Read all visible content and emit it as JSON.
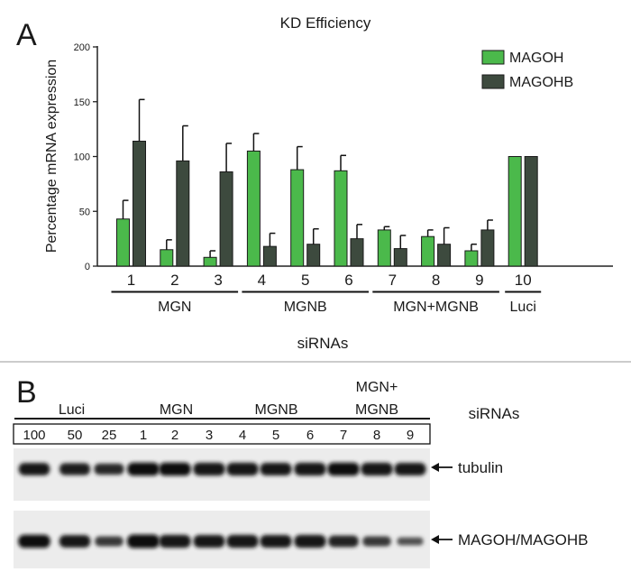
{
  "panel_a": {
    "letter": "A",
    "title": "KD Efficiency",
    "ylabel": "Percentage mRNA expression",
    "xlabel": "siRNAs",
    "legend_position": "top-right",
    "groups": [
      {
        "label": "MGN",
        "from": 1,
        "to": 3
      },
      {
        "label": "MGNB",
        "from": 4,
        "to": 6
      },
      {
        "label": "MGN+MGNB",
        "from": 7,
        "to": 9
      },
      {
        "label": "Luci",
        "from": 10,
        "to": 10
      }
    ]
  },
  "chart_data": {
    "type": "bar",
    "title": "KD Efficiency",
    "xlabel": "siRNAs",
    "ylabel": "Percentage mRNA expression",
    "categories": [
      "1",
      "2",
      "3",
      "4",
      "5",
      "6",
      "7",
      "8",
      "9",
      "10"
    ],
    "ylim": [
      0,
      200
    ],
    "yticks": [
      0,
      50,
      100,
      150,
      200
    ],
    "grid": false,
    "legend": "top-right",
    "series": [
      {
        "name": "MAGOH",
        "color": "#4bb94b",
        "values": [
          43,
          15,
          8,
          105,
          88,
          87,
          33,
          27,
          14,
          100
        ],
        "errors": [
          17,
          9,
          6,
          16,
          21,
          14,
          3,
          6,
          6,
          0
        ]
      },
      {
        "name": "MAGOHB",
        "color": "#3d4a3e",
        "values": [
          114,
          96,
          86,
          18,
          20,
          25,
          16,
          20,
          33,
          100
        ],
        "errors": [
          38,
          32,
          26,
          12,
          14,
          13,
          12,
          15,
          9,
          0
        ]
      }
    ]
  },
  "panel_b": {
    "letter": "B",
    "top_right_label": "siRNAs",
    "group_labels": [
      {
        "label": "Luci",
        "lanes": [
          0,
          2
        ]
      },
      {
        "label": "MGN",
        "lanes": [
          3,
          5
        ]
      },
      {
        "label": "MGNB",
        "lanes": [
          6,
          8
        ]
      },
      {
        "label": "MGN+",
        "label2": "MGNB",
        "lanes": [
          9,
          11
        ]
      }
    ],
    "lane_labels": [
      "100",
      "50",
      "25",
      "1",
      "2",
      "3",
      "4",
      "5",
      "6",
      "7",
      "8",
      "9"
    ],
    "blots": [
      {
        "label": "tubulin",
        "intensity": [
          0.85,
          0.8,
          0.7,
          0.95,
          0.95,
          0.92,
          0.92,
          0.9,
          0.92,
          0.95,
          0.92,
          0.9
        ]
      },
      {
        "label": "MAGOH/MAGOHB",
        "intensity": [
          0.95,
          0.85,
          0.55,
          1.0,
          0.92,
          0.88,
          0.92,
          0.9,
          0.92,
          0.75,
          0.55,
          0.3
        ]
      }
    ]
  }
}
